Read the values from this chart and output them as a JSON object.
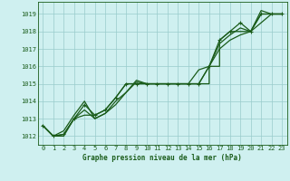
{
  "title": "Graphe pression niveau de la mer (hPa)",
  "bg_color": "#cff0f0",
  "grid_color": "#99cccc",
  "line_color": "#1a5c1a",
  "xlim": [
    -0.5,
    23.5
  ],
  "ylim": [
    1011.5,
    1019.7
  ],
  "xticks": [
    0,
    1,
    2,
    3,
    4,
    5,
    6,
    7,
    8,
    9,
    10,
    11,
    12,
    13,
    14,
    15,
    16,
    17,
    18,
    19,
    20,
    21,
    22,
    23
  ],
  "yticks": [
    1012,
    1013,
    1014,
    1015,
    1016,
    1017,
    1018,
    1019
  ],
  "series": [
    {
      "x": [
        0,
        1,
        2,
        3,
        4,
        5,
        6,
        7,
        8,
        9,
        10,
        11,
        12,
        13,
        14,
        15,
        16,
        17,
        18,
        19,
        20,
        21,
        22,
        23
      ],
      "y": [
        1012.6,
        1012.0,
        1012.1,
        1013.0,
        1013.8,
        1013.2,
        1013.5,
        1014.2,
        1015.0,
        1015.0,
        1015.0,
        1015.0,
        1015.0,
        1015.0,
        1015.0,
        1015.0,
        1016.0,
        1017.5,
        1018.0,
        1018.5,
        1018.0,
        1019.0,
        1019.0,
        1019.0
      ],
      "marker": true,
      "lw": 0.9
    },
    {
      "x": [
        0,
        1,
        2,
        3,
        4,
        5,
        6,
        7,
        8,
        9,
        10,
        11,
        12,
        13,
        14,
        15,
        16,
        16,
        17,
        17,
        18,
        19,
        20,
        21,
        22,
        23
      ],
      "y": [
        1012.6,
        1012.0,
        1012.1,
        1013.0,
        1013.2,
        1013.2,
        1013.5,
        1014.2,
        1015.0,
        1015.0,
        1015.0,
        1015.0,
        1015.0,
        1015.0,
        1015.0,
        1015.0,
        1015.0,
        1016.0,
        1016.0,
        1017.5,
        1018.0,
        1018.0,
        1018.0,
        1019.0,
        1019.0,
        1019.0
      ],
      "marker": false,
      "lw": 0.9
    },
    {
      "x": [
        0,
        1,
        2,
        3,
        4,
        5,
        6,
        7,
        8,
        9,
        10,
        11,
        12,
        13,
        14,
        15,
        16,
        17,
        18,
        19,
        20,
        21,
        22,
        23
      ],
      "y": [
        1012.6,
        1012.0,
        1012.3,
        1013.2,
        1014.0,
        1013.0,
        1013.3,
        1014.0,
        1014.5,
        1015.2,
        1015.0,
        1015.0,
        1015.0,
        1015.0,
        1015.0,
        1015.0,
        1016.0,
        1017.3,
        1017.8,
        1018.2,
        1018.0,
        1019.2,
        1019.0,
        1019.0
      ],
      "marker": false,
      "lw": 0.9
    },
    {
      "x": [
        0,
        1,
        2,
        3,
        4,
        5,
        6,
        7,
        8,
        9,
        10,
        11,
        12,
        13,
        14,
        15,
        16,
        17,
        18,
        19,
        20,
        21,
        22,
        23
      ],
      "y": [
        1012.6,
        1012.0,
        1012.0,
        1013.0,
        1013.5,
        1013.0,
        1013.3,
        1013.8,
        1014.5,
        1015.1,
        1015.0,
        1015.0,
        1015.0,
        1015.0,
        1015.0,
        1015.8,
        1016.0,
        1017.0,
        1017.5,
        1017.8,
        1018.0,
        1018.5,
        1019.0,
        1019.0
      ],
      "marker": false,
      "lw": 0.9
    }
  ]
}
